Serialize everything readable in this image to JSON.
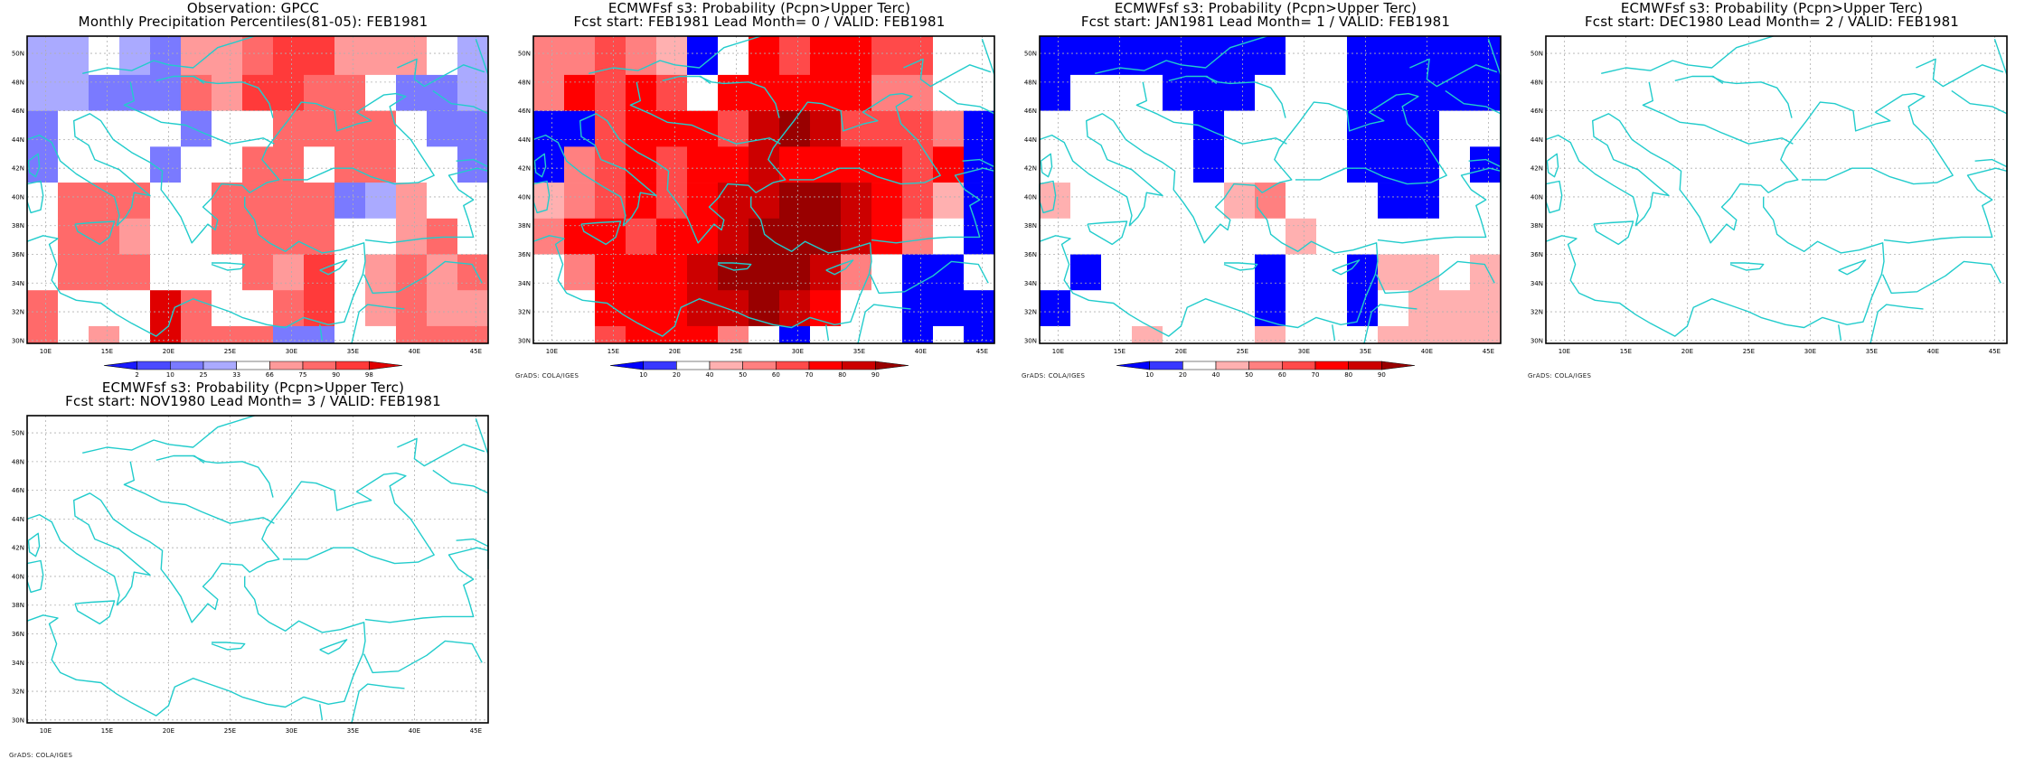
{
  "panels": [
    {
      "title1": "Observation: GPCC",
      "title2": "Monthly Precipitation Percentiles(81-05): FEB1981",
      "grads_credit": "",
      "colorbar": {
        "labels": [
          "2",
          "10",
          "25",
          "33",
          "66",
          "75",
          "90",
          "98"
        ]
      }
    },
    {
      "title1": "ECMWFsf s3: Probability (Pcpn>Upper Terc)",
      "title2": "Fcst start: FEB1981   Lead Month= 0 / VALID: FEB1981",
      "grads_credit": "GrADS: COLA/IGES",
      "colorbar": {
        "labels": [
          "10",
          "20",
          "40",
          "50",
          "60",
          "70",
          "80",
          "90"
        ]
      }
    },
    {
      "title1": "ECMWFsf s3: Probability (Pcpn>Upper Terc)",
      "title2": "Fcst start: JAN1981   Lead Month= 1 / VALID: FEB1981",
      "grads_credit": "GrADS: COLA/IGES",
      "colorbar": {
        "labels": [
          "10",
          "20",
          "40",
          "50",
          "60",
          "70",
          "80",
          "90"
        ]
      }
    },
    {
      "title1": "ECMWFsf s3: Probability (Pcpn>Upper Terc)",
      "title2": "Fcst start: DEC1980   Lead Month= 2 / VALID: FEB1981",
      "grads_credit": "GrADS: COLA/IGES",
      "colorbar": null
    },
    {
      "title1": "ECMWFsf s3: Probability (Pcpn>Upper Terc)",
      "title2": "Fcst start: NOV1980   Lead Month= 3 / VALID: FEB1981",
      "grads_credit": "GrADS: COLA/IGES",
      "colorbar": null
    }
  ],
  "colors": {
    "coast": "#22cccc",
    "grid": "#b0b0b0",
    "palette_obs": [
      "#1a1aff",
      "#4a4aff",
      "#7a7aff",
      "#aaaaff",
      "#ffffff",
      "#ff9a9a",
      "#ff6a6a",
      "#ff3a3a",
      "#e00000"
    ],
    "palette_fcst": [
      "#0000ff",
      "#3737ff",
      "#ffffff",
      "#ffb0b0",
      "#ff8080",
      "#ff4a4a",
      "#ff0000",
      "#cc0000",
      "#990000"
    ]
  },
  "chart_data": [
    {
      "type": "heatmap",
      "title": "Observation: GPCC — Monthly Precipitation Percentiles(81-05): FEB1981",
      "x_axis": {
        "label": "",
        "ticks": [
          "10E",
          "15E",
          "20E",
          "25E",
          "30E",
          "35E",
          "40E",
          "45E"
        ],
        "range": [
          8.5,
          46
        ]
      },
      "y_axis": {
        "label": "",
        "ticks": [
          "30N",
          "32N",
          "34N",
          "36N",
          "38N",
          "40N",
          "42N",
          "44N",
          "46N",
          "48N",
          "50N"
        ],
        "range": [
          29.8,
          51.2
        ]
      },
      "cell_lon": [
        8.5,
        11,
        13.5,
        16,
        18.5,
        21,
        23.5,
        26,
        28.5,
        31,
        33.5,
        36,
        38.5,
        41,
        43.5,
        46
      ],
      "cell_lat": [
        51.2,
        48.5,
        46,
        43.5,
        41,
        38.5,
        36,
        33.5,
        31,
        29.8
      ],
      "bins_percentile": [
        "<2",
        "2-10",
        "10-25",
        "25-33",
        "33-66",
        "66-75",
        "75-90",
        "90-98",
        ">98"
      ],
      "class_grid": [
        [
          3,
          3,
          4,
          3,
          2,
          5,
          5,
          6,
          7,
          7,
          5,
          5,
          5,
          4,
          3
        ],
        [
          3,
          3,
          2,
          2,
          2,
          6,
          5,
          7,
          7,
          6,
          6,
          4,
          2,
          2,
          3
        ],
        [
          2,
          4,
          4,
          4,
          4,
          2,
          4,
          4,
          6,
          6,
          6,
          6,
          4,
          2,
          2
        ],
        [
          2,
          4,
          4,
          4,
          2,
          4,
          4,
          6,
          6,
          4,
          6,
          6,
          4,
          4,
          2
        ],
        [
          4,
          6,
          6,
          6,
          4,
          4,
          6,
          6,
          6,
          6,
          2,
          3,
          5,
          4,
          4
        ],
        [
          4,
          6,
          6,
          5,
          4,
          4,
          6,
          6,
          6,
          6,
          4,
          4,
          5,
          6,
          4
        ],
        [
          4,
          6,
          6,
          6,
          4,
          4,
          4,
          6,
          5,
          7,
          4,
          5,
          6,
          5,
          6
        ],
        [
          6,
          4,
          4,
          4,
          8,
          6,
          4,
          4,
          6,
          7,
          4,
          5,
          6,
          5,
          5
        ],
        [
          6,
          4,
          5,
          4,
          8,
          6,
          6,
          6,
          2,
          2,
          4,
          4,
          6,
          6,
          6
        ]
      ]
    },
    {
      "type": "heatmap",
      "title": "Fcst start: FEB1981 Lead Month= 0 / VALID: FEB1981",
      "x_axis": {
        "label": "",
        "ticks": [
          "10E",
          "15E",
          "20E",
          "25E",
          "30E",
          "35E",
          "40E",
          "45E"
        ],
        "range": [
          8.5,
          46
        ]
      },
      "y_axis": {
        "label": "",
        "ticks": [
          "30N",
          "32N",
          "34N",
          "36N",
          "38N",
          "40N",
          "42N",
          "44N",
          "46N",
          "48N",
          "50N"
        ],
        "range": [
          29.8,
          51.2
        ]
      },
      "cell_lon": [
        8.5,
        11,
        13.5,
        16,
        18.5,
        21,
        23.5,
        26,
        28.5,
        31,
        33.5,
        36,
        38.5,
        41,
        43.5,
        46
      ],
      "cell_lat": [
        51.2,
        48.5,
        46,
        43.5,
        41,
        38.5,
        36,
        33.5,
        31,
        29.8
      ],
      "bins_probability_pct": [
        "<10",
        "10-20",
        "20-40",
        "40-50",
        "50-60",
        "60-70",
        "70-80",
        "80-90",
        ">90"
      ],
      "class_grid": [
        [
          4,
          4,
          5,
          4,
          3,
          0,
          2,
          6,
          5,
          6,
          6,
          5,
          5,
          2,
          2
        ],
        [
          4,
          6,
          5,
          6,
          5,
          2,
          6,
          6,
          6,
          6,
          6,
          4,
          4,
          2,
          2
        ],
        [
          0,
          0,
          5,
          6,
          6,
          6,
          5,
          7,
          8,
          7,
          5,
          5,
          5,
          4,
          0
        ],
        [
          0,
          4,
          5,
          6,
          5,
          6,
          6,
          7,
          6,
          6,
          6,
          6,
          5,
          6,
          0
        ],
        [
          3,
          4,
          5,
          6,
          5,
          6,
          7,
          7,
          8,
          8,
          7,
          6,
          5,
          3,
          0
        ],
        [
          4,
          6,
          6,
          5,
          6,
          6,
          7,
          8,
          8,
          8,
          7,
          6,
          4,
          2,
          0
        ],
        [
          2,
          4,
          6,
          6,
          6,
          7,
          8,
          8,
          8,
          7,
          4,
          2,
          0,
          0,
          2
        ],
        [
          2,
          2,
          6,
          6,
          6,
          7,
          7,
          8,
          7,
          6,
          2,
          2,
          0,
          0,
          0
        ],
        [
          2,
          2,
          5,
          6,
          6,
          6,
          4,
          2,
          0,
          2,
          2,
          2,
          0,
          2,
          0
        ]
      ]
    },
    {
      "type": "heatmap",
      "title": "Fcst start: JAN1981 Lead Month= 1 / VALID: FEB1981",
      "x_axis": {
        "label": "",
        "ticks": [
          "10E",
          "15E",
          "20E",
          "25E",
          "30E",
          "35E",
          "40E",
          "45E"
        ],
        "range": [
          8.5,
          46
        ]
      },
      "y_axis": {
        "label": "",
        "ticks": [
          "30N",
          "32N",
          "34N",
          "36N",
          "38N",
          "40N",
          "42N",
          "44N",
          "46N",
          "48N",
          "50N"
        ],
        "range": [
          29.8,
          51.2
        ]
      },
      "cell_lon": [
        8.5,
        11,
        13.5,
        16,
        18.5,
        21,
        23.5,
        26,
        28.5,
        31,
        33.5,
        36,
        38.5,
        41,
        43.5,
        46
      ],
      "cell_lat": [
        51.2,
        48.5,
        46,
        43.5,
        41,
        38.5,
        36,
        33.5,
        31,
        29.8
      ],
      "bins_probability_pct": [
        "<10",
        "10-20",
        "20-40",
        "40-50",
        "50-60",
        "60-70",
        "70-80",
        "80-90",
        ">90"
      ],
      "class_grid": [
        [
          0,
          0,
          0,
          0,
          0,
          0,
          0,
          0,
          2,
          2,
          0,
          0,
          0,
          0,
          0
        ],
        [
          0,
          2,
          2,
          2,
          0,
          0,
          0,
          2,
          2,
          2,
          0,
          0,
          0,
          0,
          0
        ],
        [
          2,
          2,
          2,
          2,
          2,
          0,
          2,
          2,
          2,
          2,
          0,
          0,
          0,
          2,
          2
        ],
        [
          2,
          2,
          2,
          2,
          2,
          0,
          2,
          2,
          2,
          2,
          0,
          0,
          0,
          2,
          0
        ],
        [
          3,
          2,
          2,
          2,
          2,
          2,
          3,
          4,
          2,
          2,
          2,
          0,
          0,
          2,
          2
        ],
        [
          2,
          2,
          2,
          2,
          2,
          2,
          2,
          2,
          3,
          2,
          2,
          2,
          2,
          2,
          2
        ],
        [
          2,
          0,
          2,
          2,
          2,
          2,
          2,
          0,
          2,
          2,
          0,
          3,
          3,
          2,
          3
        ],
        [
          0,
          2,
          2,
          2,
          2,
          2,
          2,
          0,
          2,
          2,
          0,
          2,
          3,
          3,
          3
        ],
        [
          2,
          2,
          2,
          3,
          2,
          2,
          2,
          3,
          2,
          2,
          2,
          3,
          3,
          3,
          3
        ]
      ]
    },
    {
      "type": "heatmap",
      "title": "Fcst start: DEC1980 Lead Month= 2 / VALID: FEB1981",
      "x_axis": {
        "label": "",
        "ticks": [
          "10E",
          "15E",
          "20E",
          "25E",
          "30E",
          "35E",
          "40E",
          "45E"
        ],
        "range": [
          8.5,
          46
        ]
      },
      "y_axis": {
        "label": "",
        "ticks": [
          "30N",
          "32N",
          "34N",
          "36N",
          "38N",
          "40N",
          "42N",
          "44N",
          "46N",
          "48N",
          "50N"
        ],
        "range": [
          29.8,
          51.2
        ]
      },
      "class_grid": []
    },
    {
      "type": "heatmap",
      "title": "Fcst start: NOV1980 Lead Month= 3 / VALID: FEB1981",
      "x_axis": {
        "label": "",
        "ticks": [
          "10E",
          "15E",
          "20E",
          "25E",
          "30E",
          "35E",
          "40E",
          "45E"
        ],
        "range": [
          8.5,
          46
        ]
      },
      "y_axis": {
        "label": "",
        "ticks": [
          "30N",
          "32N",
          "34N",
          "36N",
          "38N",
          "40N",
          "42N",
          "44N",
          "46N",
          "48N",
          "50N"
        ],
        "range": [
          29.8,
          51.2
        ]
      },
      "class_grid": []
    }
  ]
}
